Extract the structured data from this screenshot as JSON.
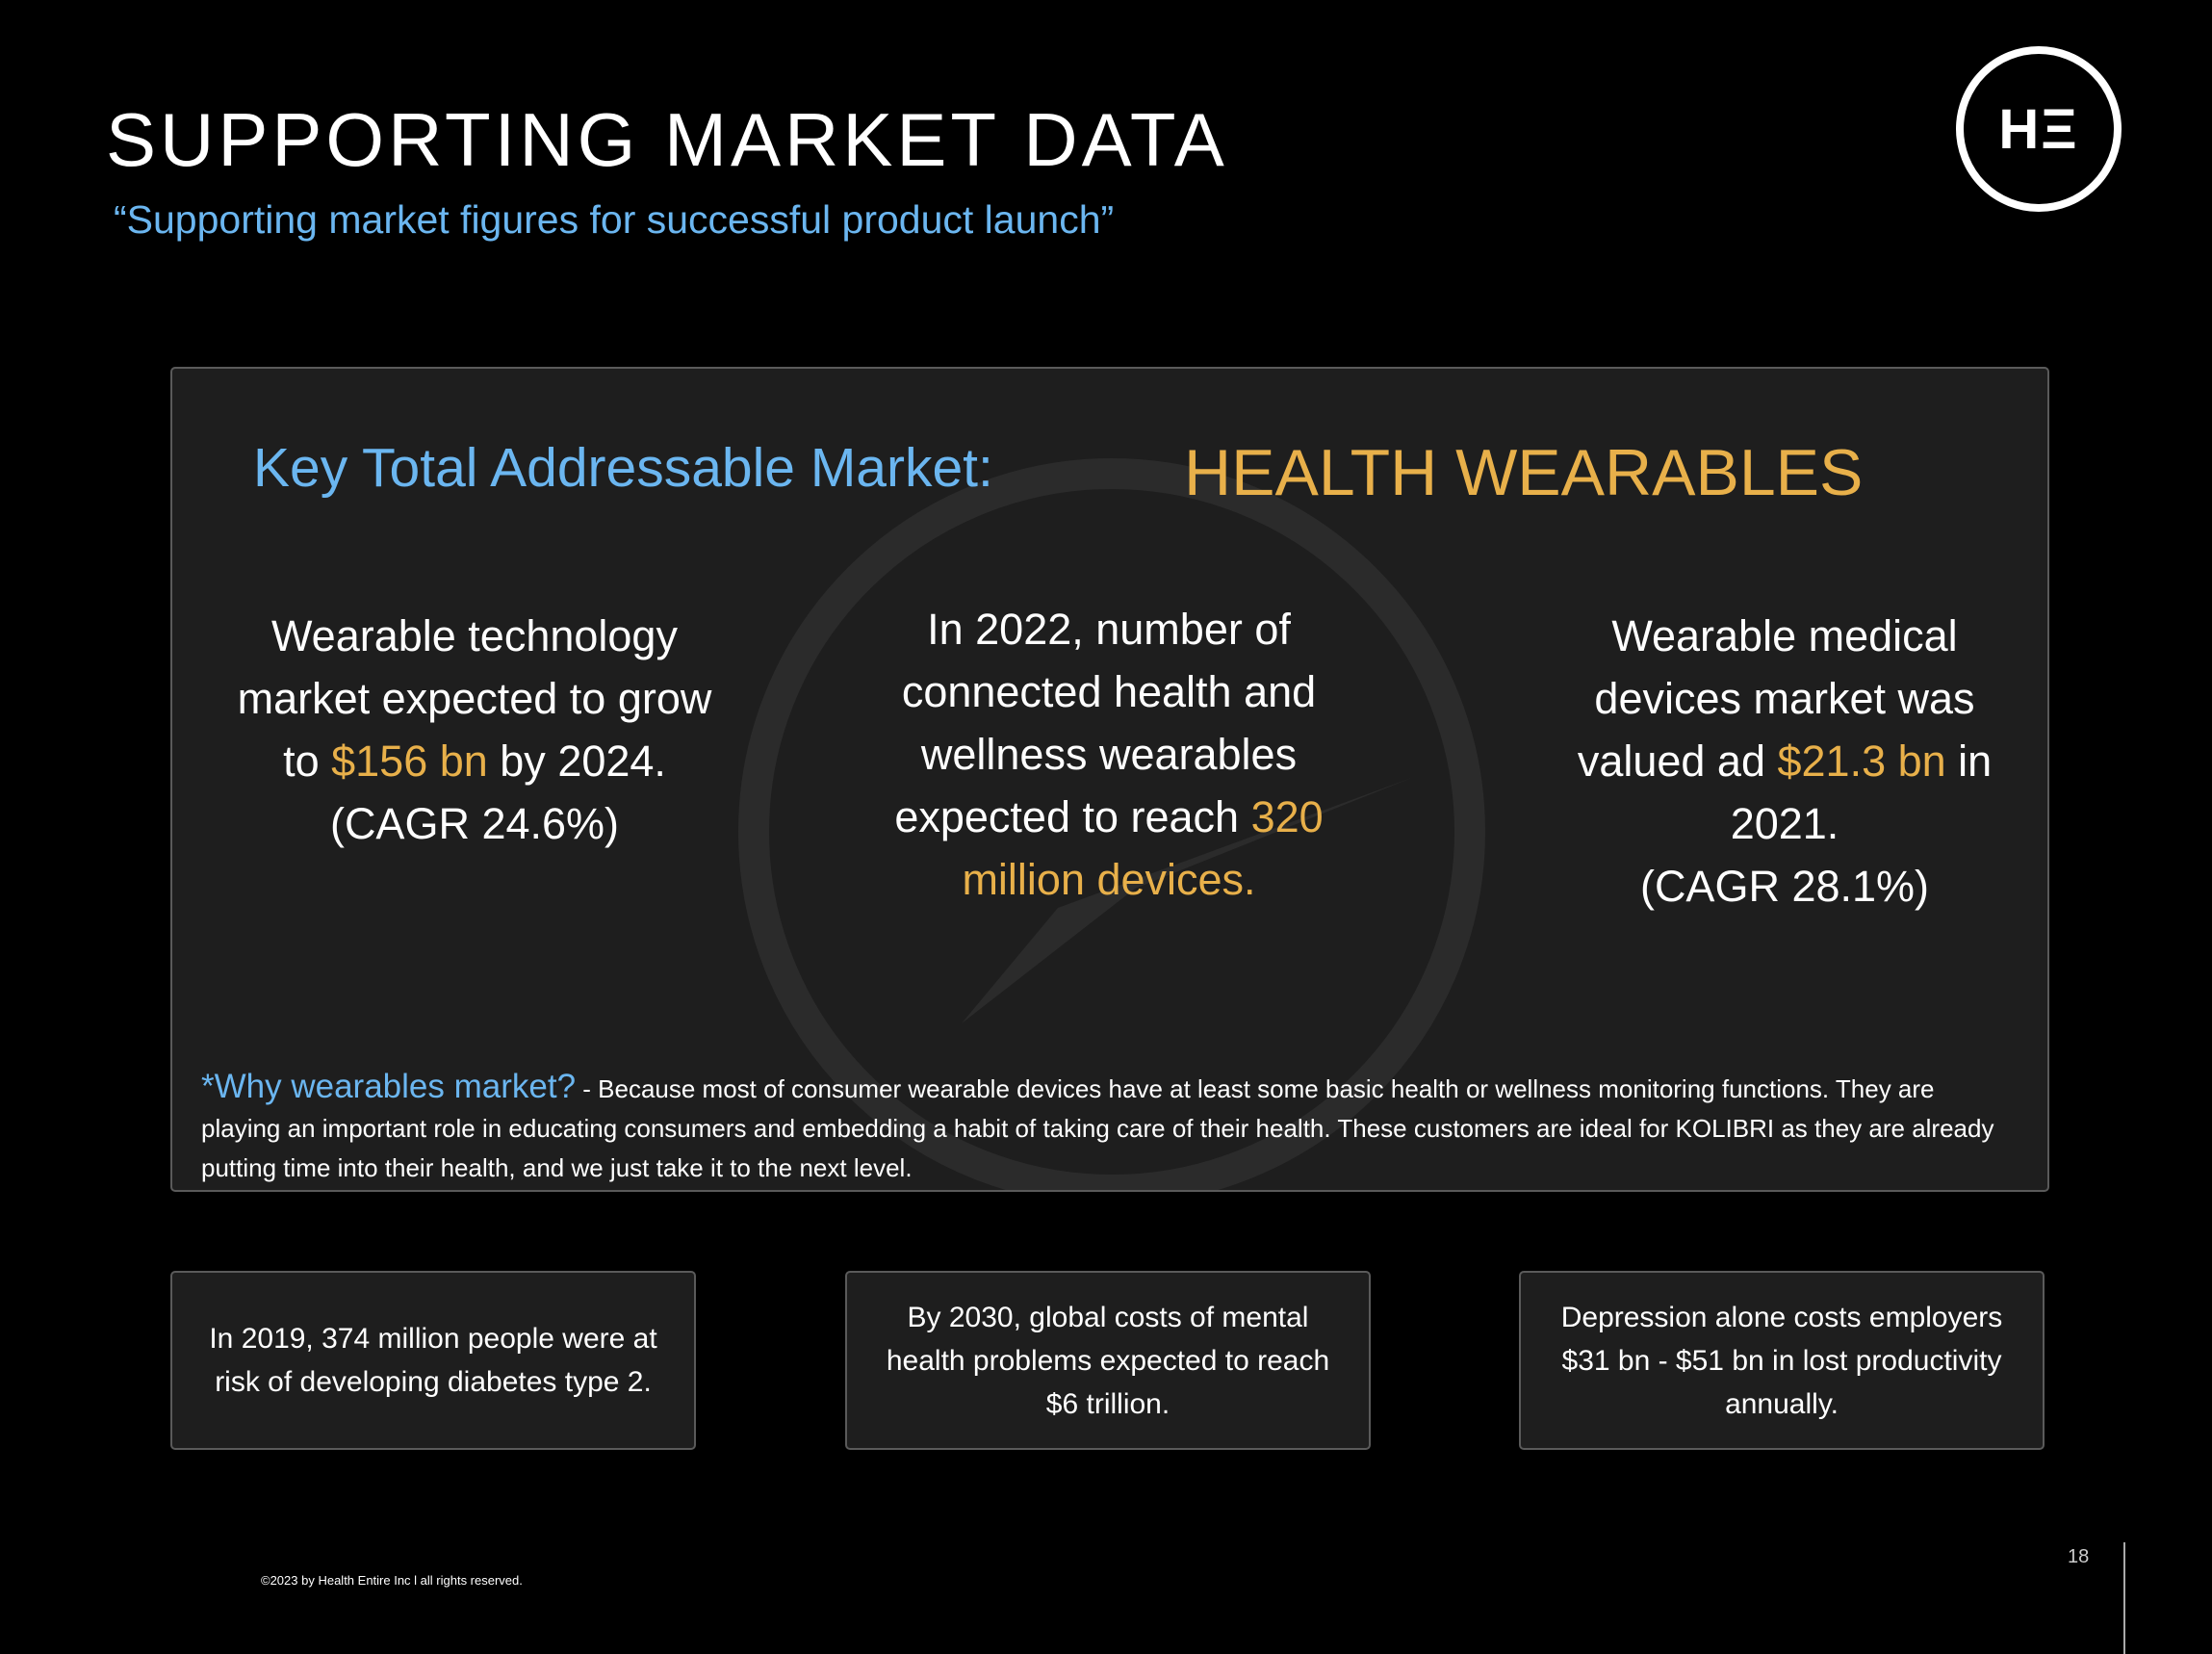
{
  "header": {
    "title": "SUPPORTING MARKET DATA",
    "subtitle": "“Supporting market figures for successful product launch”",
    "logo": "HΞ"
  },
  "market": {
    "heading": "Key Total Addressable Market:",
    "segment": "HEALTH WEARABLES",
    "stats": [
      {
        "parts": [
          {
            "text": "Wearable technology market expected to grow to "
          },
          {
            "text": "$156 bn",
            "accent": true
          },
          {
            "text": " by 2024. (CAGR 24.6%)"
          }
        ]
      },
      {
        "parts": [
          {
            "text": "In 2022, number of connected health and wellness wearables expected to reach "
          },
          {
            "text": "320 million devices.",
            "accent": true
          }
        ]
      },
      {
        "parts": [
          {
            "text": "Wearable medical devices market was valued ad "
          },
          {
            "text": "$21.3 bn",
            "accent": true
          },
          {
            "text": " in 2021."
          },
          {
            "text": "(CAGR 28.1%)",
            "newline": true
          }
        ]
      }
    ],
    "why_label": "*Why wearables market?",
    "why_text": " - Because most of consumer wearable devices have at least some basic health or wellness monitoring functions. They are playing an important role in educating consumers and embedding a habit of taking care of their health. These customers are ideal for KOLIBRI as they are already putting time into their health, and we just take it to the next level."
  },
  "facts": [
    "In 2019, 374 million people were at risk of developing diabetes type 2.",
    "By 2030, global costs of mental health problems expected to reach $6 trillion.",
    "Depression alone costs employers $31 bn - $51 bn in lost productivity annually."
  ],
  "footer": {
    "copyright": "©2023 by Health Entire Inc l all rights reserved.",
    "page": "18"
  }
}
